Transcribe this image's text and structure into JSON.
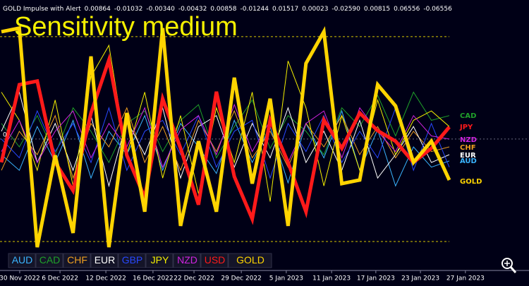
{
  "chart_data": {
    "type": "line",
    "title": "GOLD Impulse with Alert",
    "indicator_values": [
      {
        "value": 0.00864,
        "label": "0.00864"
      },
      {
        "value": -0.01032,
        "label": "-0.01032"
      },
      {
        "value": -0.0034,
        "label": "-0.00340"
      },
      {
        "value": -0.00432,
        "label": "-0.00432"
      },
      {
        "value": 0.00858,
        "label": "0.00858"
      },
      {
        "value": -0.01244,
        "label": "-0.01244"
      },
      {
        "value": 0.01517,
        "label": "0.01517"
      },
      {
        "value": 0.00023,
        "label": "0.00023"
      },
      {
        "value": -0.0259,
        "label": "-0.02590"
      },
      {
        "value": 0.00815,
        "label": "0.00815"
      },
      {
        "value": 0.06556,
        "label": "0.06556"
      },
      {
        "value": -0.06556,
        "label": "-0.06556"
      }
    ],
    "annotation": "Sensitivity medium",
    "ylim": [
      -0.0841,
      0.089
    ],
    "yticks": [
      0
    ],
    "xlim": [
      -0.08,
      29.45
    ],
    "xticks": [
      {
        "value": 1.02,
        "label": "30 Nov 2022"
      },
      {
        "value": 3.27,
        "label": "6 Dec 2022"
      },
      {
        "value": 5.83,
        "label": "12 Dec 2022"
      },
      {
        "value": 8.46,
        "label": "16 Dec 2022"
      },
      {
        "value": 10.75,
        "label": "22 Dec 2022"
      },
      {
        "value": 13.39,
        "label": "29 Dec 2022"
      },
      {
        "value": 15.9,
        "label": "5 Jan 2023"
      },
      {
        "value": 18.43,
        "label": "11 Jan 2023"
      },
      {
        "value": 20.9,
        "label": "17 Jan 2023"
      },
      {
        "value": 23.39,
        "label": "23 Jan 2023"
      },
      {
        "value": 25.9,
        "label": "27 Jan 2023"
      }
    ],
    "series": [
      {
        "name": "AUD",
        "color": "#3ab4ff",
        "values": [
          -0.01,
          -0.02,
          0.008,
          -0.015,
          0.012,
          -0.025,
          0.005,
          -0.01,
          0.015,
          -0.02,
          0.01,
          -0.005,
          -0.022,
          0.012,
          -0.015,
          0.008,
          -0.028,
          0.01,
          -0.012,
          0.018,
          -0.02,
          0.006,
          -0.03,
          -0.005,
          -0.018,
          -0.014
        ]
      },
      {
        "name": "CAD",
        "color": "#1fa02a",
        "values": [
          0.01,
          -0.005,
          0.015,
          -0.01,
          0.02,
          0.005,
          -0.015,
          0.01,
          0.018,
          -0.008,
          0.012,
          0.022,
          -0.012,
          0.008,
          0.025,
          -0.006,
          0.015,
          0.005,
          -0.01,
          0.02,
          0.008,
          0.028,
          0.002,
          0.03,
          0.012,
          0.015
        ]
      },
      {
        "name": "CHF",
        "color": "#f0a020",
        "values": [
          -0.02,
          0.005,
          -0.01,
          0.015,
          -0.025,
          0.01,
          -0.005,
          0.02,
          -0.015,
          0.008,
          -0.02,
          0.012,
          -0.008,
          0.018,
          -0.012,
          0.005,
          -0.018,
          0.01,
          -0.005,
          0.015,
          -0.01,
          0.008,
          -0.012,
          0.005,
          -0.008,
          -0.005
        ]
      },
      {
        "name": "EUR",
        "color": "#ffffff",
        "values": [
          0.005,
          0.03,
          -0.015,
          0.01,
          -0.02,
          0.015,
          -0.03,
          0.012,
          -0.01,
          0.02,
          -0.025,
          0.008,
          0.015,
          -0.018,
          0.01,
          -0.012,
          0.02,
          -0.015,
          0.005,
          -0.02,
          0.012,
          -0.025,
          -0.01,
          0.008,
          -0.015,
          -0.01
        ]
      },
      {
        "name": "GBP",
        "color": "#2848ff",
        "values": [
          0.0,
          -0.012,
          0.018,
          -0.008,
          0.01,
          -0.015,
          0.02,
          -0.02,
          0.005,
          0.012,
          -0.01,
          0.015,
          -0.018,
          0.005,
          0.012,
          -0.025,
          0.01,
          -0.008,
          0.015,
          -0.015,
          0.005,
          -0.012,
          0.02,
          -0.02,
          0.01,
          -0.018
        ]
      },
      {
        "name": "JPY",
        "color": "#f5f000",
        "values": [
          0.03,
          0.012,
          -0.02,
          0.025,
          -0.03,
          0.04,
          0.06,
          -0.01,
          0.03,
          -0.025,
          0.015,
          -0.035,
          0.02,
          -0.015,
          0.03,
          -0.04,
          0.05,
          0.02,
          -0.03,
          0.015,
          -0.02,
          0.025,
          -0.01,
          0.012,
          0.018,
          0.008
        ]
      },
      {
        "name": "NZD",
        "color": "#d024e0",
        "values": [
          -0.008,
          0.012,
          -0.015,
          0.005,
          0.018,
          -0.012,
          0.01,
          -0.005,
          0.02,
          -0.018,
          0.006,
          0.015,
          -0.01,
          0.022,
          -0.008,
          0.012,
          -0.015,
          0.01,
          0.018,
          -0.012,
          0.02,
          0.005,
          -0.008,
          0.015,
          0.002,
          0.0
        ]
      },
      {
        "name": "USD",
        "color": "#ff1a1a",
        "values": [
          -0.0149,
          0.0348,
          0.0371,
          -0.0149,
          -0.033,
          0.0167,
          0.0506,
          -0.0104,
          -0.0375,
          0.0258,
          -0.0059,
          -0.042,
          0.0303,
          -0.024,
          -0.0511,
          0.0122,
          -0.0149,
          -0.0465,
          0.0122,
          -0.0059,
          0.0167,
          0.0054,
          -0.0014,
          -0.0149,
          -0.0059,
          0.0077
        ]
      },
      {
        "name": "GOLD",
        "color": "#ffd400",
        "values": [
          0.0687,
          0.071,
          -0.0692,
          -0.0104,
          -0.0601,
          0.0529,
          -0.0692,
          0.0167,
          -0.0465,
          0.071,
          -0.0556,
          -0.0014,
          -0.0465,
          0.0393,
          -0.0285,
          0.0258,
          -0.0556,
          0.0484,
          0.0687,
          -0.0285,
          -0.0262,
          0.0348,
          0.0212,
          -0.0149,
          -0.0014,
          -0.0262
        ]
      }
    ]
  }
}
